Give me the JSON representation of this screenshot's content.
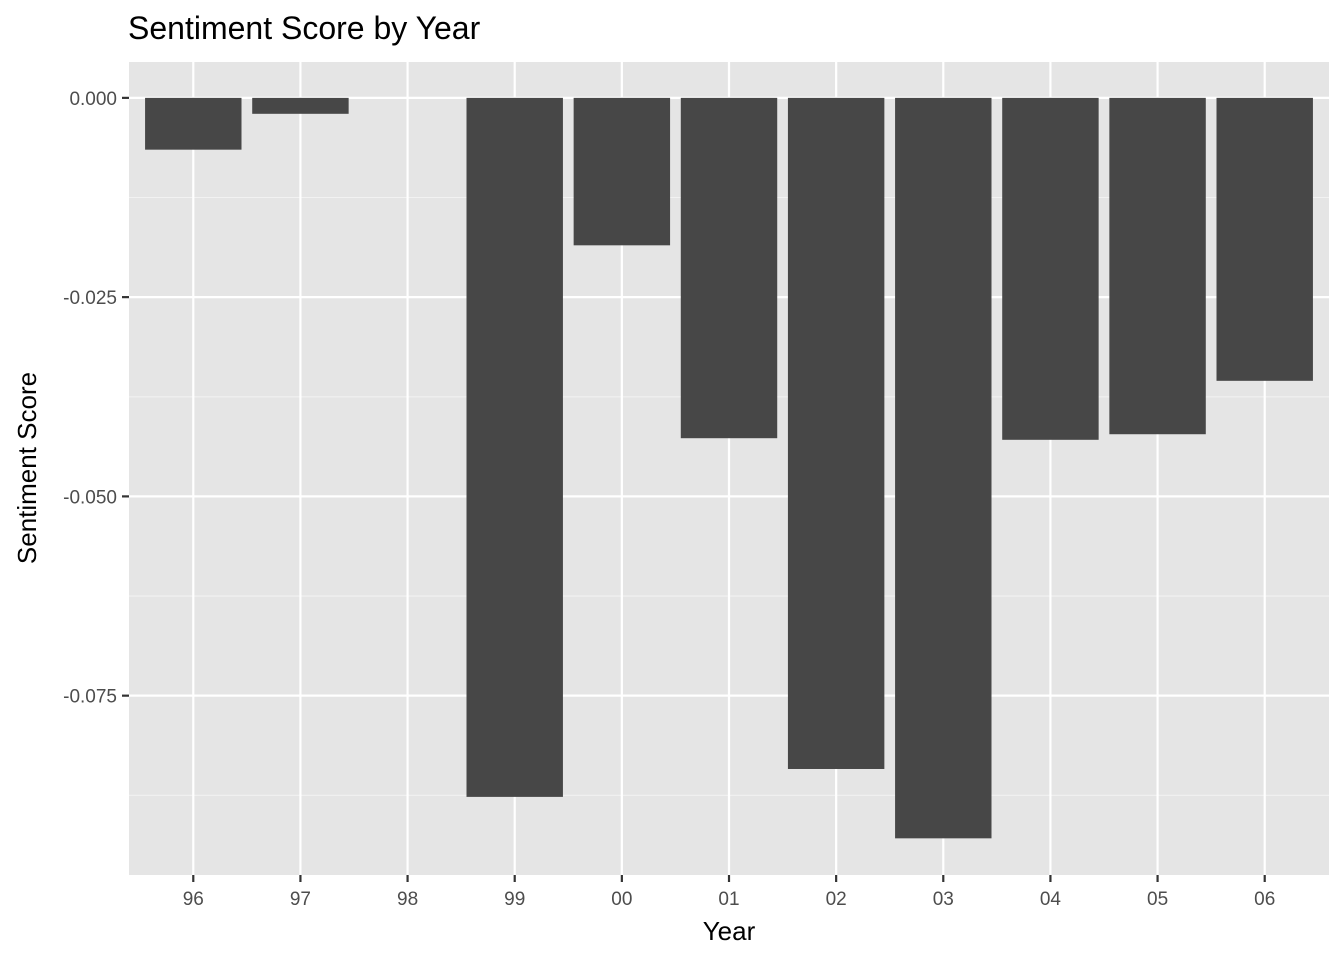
{
  "chart_data": {
    "type": "bar",
    "title": "Sentiment Score by Year",
    "xlabel": "Year",
    "ylabel": "Sentiment Score",
    "categories": [
      "96",
      "97",
      "98",
      "99",
      "00",
      "01",
      "02",
      "03",
      "04",
      "05",
      "06"
    ],
    "values": [
      -0.0065,
      -0.002,
      null,
      -0.0877,
      -0.0185,
      -0.0427,
      -0.0842,
      -0.0929,
      -0.0429,
      -0.0422,
      -0.0355
    ],
    "ylim": [
      -0.0975,
      0.0045
    ],
    "yticks": [
      0.0,
      -0.025,
      -0.05,
      -0.075
    ],
    "ytick_labels": [
      "0.000",
      "-0.025",
      "-0.050",
      "-0.075"
    ],
    "grid": true,
    "legend": "none",
    "colors": {
      "bar": "#474747",
      "panel": "#e5e5e5",
      "grid_major": "#ffffff",
      "grid_minor": "#f2f2f2"
    }
  }
}
